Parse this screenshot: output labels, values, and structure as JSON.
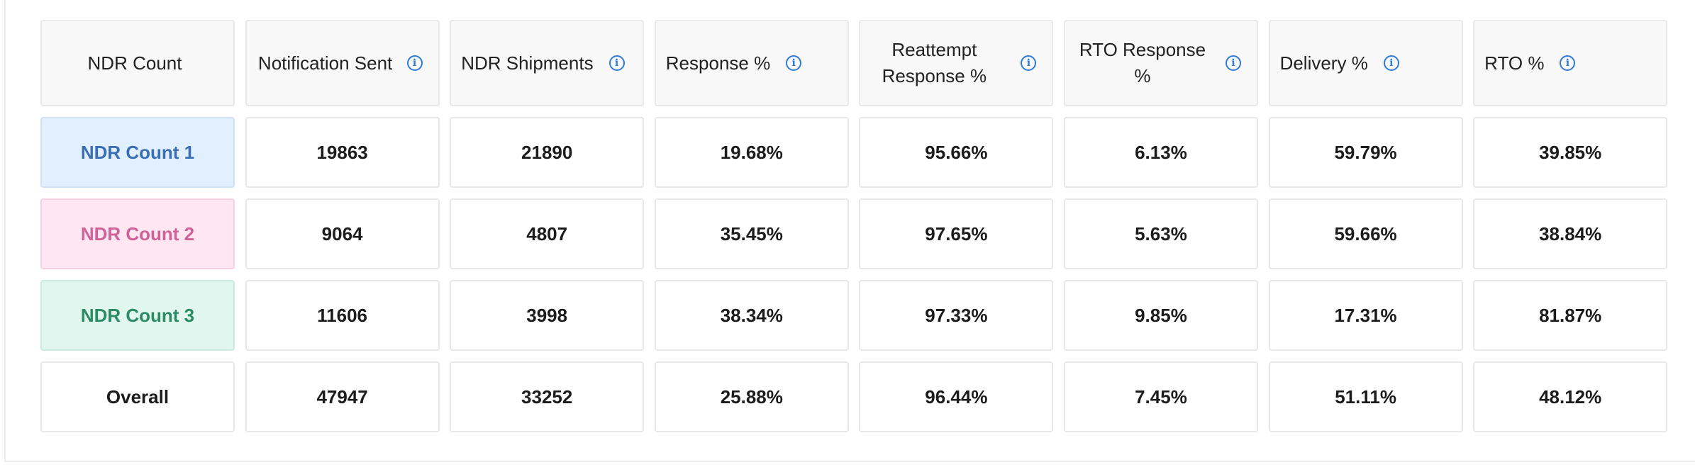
{
  "table": {
    "headers": [
      {
        "label": "NDR Count",
        "info": false
      },
      {
        "label": "Notification Sent",
        "info": true
      },
      {
        "label": "NDR Shipments",
        "info": true
      },
      {
        "label": "Response %",
        "info": true
      },
      {
        "label": "Reattempt Response %",
        "info": true
      },
      {
        "label": "RTO Response %",
        "info": true
      },
      {
        "label": "Delivery %",
        "info": true
      },
      {
        "label": "RTO %",
        "info": true
      }
    ],
    "info_icon_glyph": "i",
    "rows": [
      {
        "label": "NDR Count 1",
        "color": "#3a6fb5",
        "bg": "#e1efff",
        "values": [
          "19863",
          "21890",
          "19.68%",
          "95.66%",
          "6.13%",
          "59.79%",
          "39.85%"
        ]
      },
      {
        "label": "NDR Count 2",
        "color": "#d0629a",
        "bg": "#ffe6f1",
        "values": [
          "9064",
          "4807",
          "35.45%",
          "97.65%",
          "5.63%",
          "59.66%",
          "38.84%"
        ]
      },
      {
        "label": "NDR Count 3",
        "color": "#2a8b64",
        "bg": "#e0f6ef",
        "values": [
          "11606",
          "3998",
          "38.34%",
          "97.33%",
          "9.85%",
          "17.31%",
          "81.87%"
        ]
      },
      {
        "label": "Overall",
        "color": "#1c1c1c",
        "bg": "#ffffff",
        "values": [
          "47947",
          "33252",
          "25.88%",
          "96.44%",
          "7.45%",
          "51.11%",
          "48.12%"
        ]
      }
    ]
  }
}
